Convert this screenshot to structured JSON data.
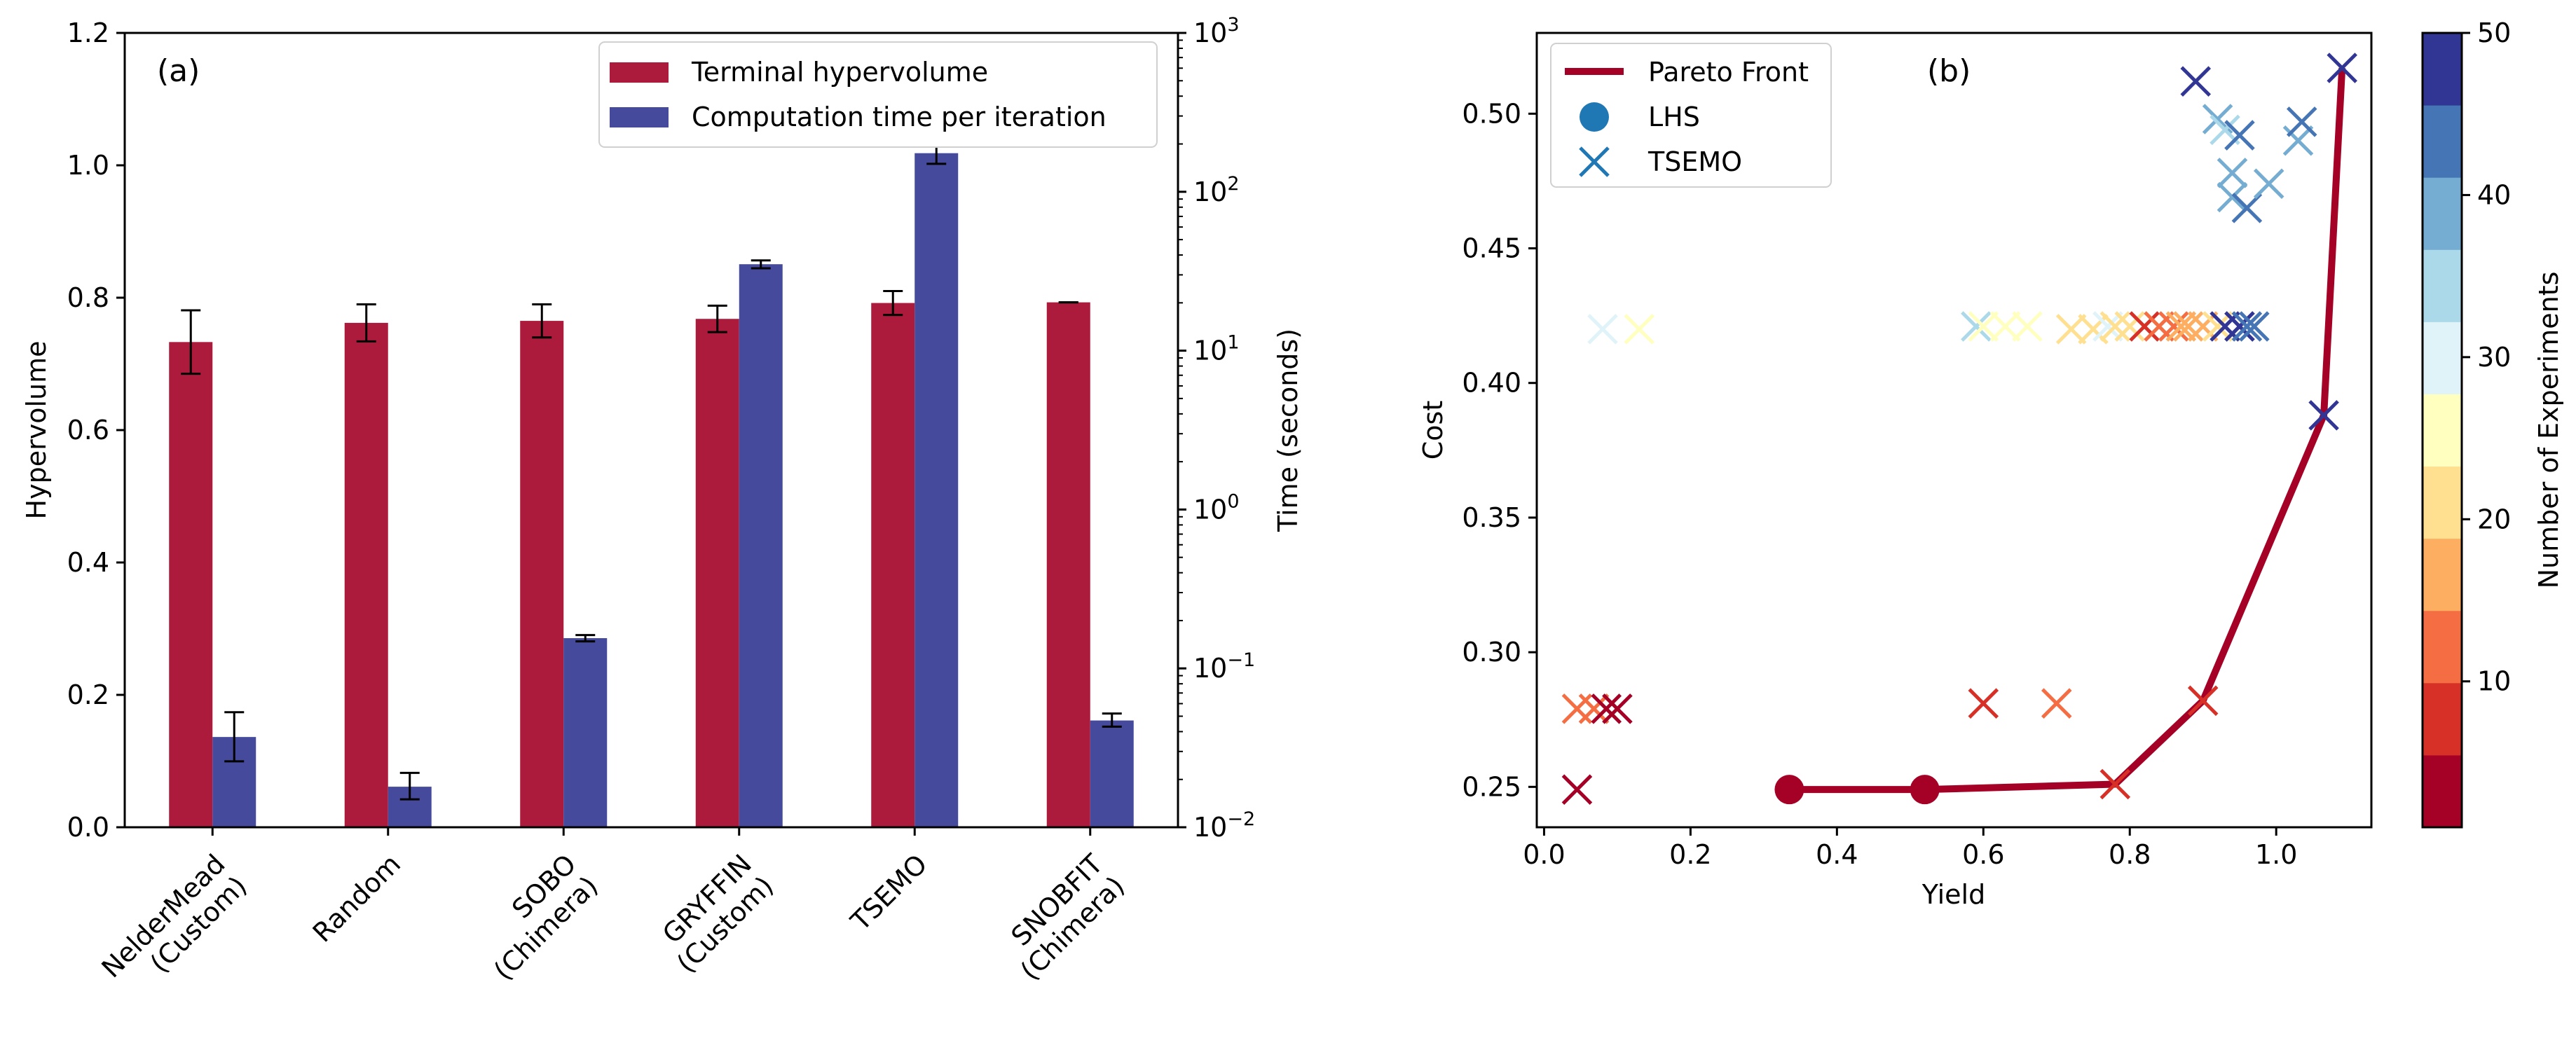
{
  "chart_data": [
    {
      "panel_label": "(a)",
      "type": "bar",
      "categories": [
        "NelderMead\n(Custom)",
        "Random",
        "SOBO\n(Chimera)",
        "GRYFFIN\n(Custom)",
        "TSEMO",
        "SNOBFIT\n(Chimera)"
      ],
      "series": [
        {
          "name": "Terminal hypervolume",
          "axis": "left",
          "color": "#ac1a3c",
          "values": [
            0.733,
            0.762,
            0.765,
            0.768,
            0.792,
            0.793
          ],
          "errors": [
            0.048,
            0.028,
            0.025,
            0.02,
            0.018,
            0.0
          ]
        },
        {
          "name": "Computation time per iteration",
          "axis": "right",
          "color": "#454a9c",
          "values": [
            0.037,
            0.018,
            0.155,
            35.0,
            175.0,
            0.047
          ],
          "error_low": [
            0.026,
            0.015,
            0.148,
            33.0,
            150.0,
            0.043
          ],
          "error_high": [
            0.053,
            0.022,
            0.162,
            37.0,
            200.0,
            0.052
          ]
        }
      ],
      "ylabel": "Hypervolume",
      "ylim": [
        0.0,
        1.2
      ],
      "yticks": [
        0.0,
        0.2,
        0.4,
        0.6,
        0.8,
        1.0,
        1.2
      ],
      "ytick_labels": [
        "0.0",
        "0.2",
        "0.4",
        "0.6",
        "0.8",
        "1.0",
        "1.2"
      ],
      "y2label": "Time (seconds)",
      "y2scale": "log",
      "y2lim": [
        0.01,
        1000
      ],
      "y2ticks": [
        {
          "value": 0.01,
          "base": "10",
          "exp": "−2"
        },
        {
          "value": 0.1,
          "base": "10",
          "exp": "−1"
        },
        {
          "value": 1,
          "base": "10",
          "exp": "0"
        },
        {
          "value": 10,
          "base": "10",
          "exp": "1"
        },
        {
          "value": 100,
          "base": "10",
          "exp": "2"
        },
        {
          "value": 1000,
          "base": "10",
          "exp": "3"
        }
      ],
      "legend_position": "top-right",
      "grid": false
    },
    {
      "panel_label": "(b)",
      "type": "scatter",
      "xlabel": "Yield",
      "ylabel": "Cost",
      "xlim": [
        -0.01,
        1.13
      ],
      "ylim": [
        0.235,
        0.53
      ],
      "xticks": [
        0.0,
        0.2,
        0.4,
        0.6,
        0.8,
        1.0
      ],
      "xtick_labels": [
        "0.0",
        "0.2",
        "0.4",
        "0.6",
        "0.8",
        "1.0"
      ],
      "yticks": [
        0.25,
        0.3,
        0.35,
        0.4,
        0.45,
        0.5
      ],
      "ytick_labels": [
        "0.25",
        "0.30",
        "0.35",
        "0.40",
        "0.45",
        "0.50"
      ],
      "legend": [
        "Pareto Front",
        "LHS",
        "TSEMO"
      ],
      "legend_position": "top-left",
      "grid": false,
      "pareto_front": {
        "name": "Pareto Front",
        "color": "#a50026",
        "x": [
          0.335,
          0.52,
          0.78,
          0.9,
          1.065,
          1.09
        ],
        "y": [
          0.249,
          0.249,
          0.251,
          0.282,
          0.388,
          0.517
        ]
      },
      "lhs": {
        "name": "LHS",
        "x": [
          0.335,
          0.52
        ],
        "y": [
          0.249,
          0.249
        ],
        "experiment": [
          1,
          2
        ]
      },
      "tsemo": {
        "name": "TSEMO",
        "x": [
          0.045,
          0.045,
          0.068,
          0.085,
          0.1,
          0.6,
          0.7,
          0.78,
          0.9,
          1.065,
          0.08,
          0.13,
          0.59,
          0.6,
          0.63,
          0.66,
          0.72,
          0.75,
          0.77,
          0.78,
          0.8,
          0.82,
          0.84,
          0.86,
          0.87,
          0.88,
          0.9,
          0.92,
          0.93,
          0.95,
          0.95,
          0.96,
          0.97,
          0.89,
          0.92,
          0.93,
          0.95,
          0.94,
          0.94,
          0.96,
          0.99,
          1.03,
          1.035,
          1.09
        ],
        "y": [
          0.249,
          0.279,
          0.279,
          0.279,
          0.279,
          0.281,
          0.281,
          0.251,
          0.282,
          0.388,
          0.42,
          0.42,
          0.421,
          0.421,
          0.421,
          0.421,
          0.42,
          0.42,
          0.421,
          0.421,
          0.421,
          0.421,
          0.421,
          0.421,
          0.421,
          0.421,
          0.421,
          0.421,
          0.421,
          0.421,
          0.421,
          0.421,
          0.421,
          0.512,
          0.498,
          0.494,
          0.492,
          0.478,
          0.469,
          0.465,
          0.474,
          0.49,
          0.497,
          0.517
        ],
        "experiment": [
          3,
          10,
          12,
          5,
          4,
          6,
          13,
          8,
          7,
          48,
          32,
          24,
          34,
          26,
          25,
          27,
          22,
          23,
          30,
          21,
          20,
          9,
          11,
          14,
          15,
          18,
          17,
          19,
          46,
          49,
          47,
          45,
          44,
          50,
          39,
          36,
          42,
          37,
          38,
          43,
          41,
          40,
          42,
          50
        ]
      },
      "colorbar": {
        "label": "Number of Experiments",
        "range": [
          1,
          50
        ],
        "ticks": [
          10,
          20,
          30,
          40,
          50
        ],
        "tick_labels": [
          "10",
          "20",
          "30",
          "40",
          "50"
        ],
        "colors": [
          "#a50026",
          "#d73027",
          "#f46d43",
          "#fdae61",
          "#fee090",
          "#ffffbf",
          "#e0f3f8",
          "#abd9e9",
          "#74add1",
          "#4575b4",
          "#313695"
        ]
      }
    }
  ]
}
